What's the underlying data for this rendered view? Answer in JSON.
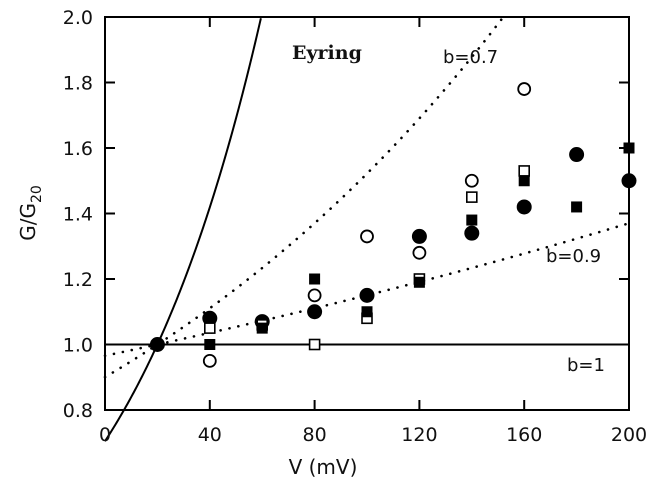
{
  "chart_data": {
    "type": "scatter",
    "title": "",
    "xlabel": "V (mV)",
    "ylabel_main": "G/G",
    "ylabel_sub": "20",
    "xlim": [
      0,
      200
    ],
    "ylim": [
      0.8,
      2.0
    ],
    "xticks": [
      0,
      40,
      80,
      120,
      160,
      200
    ],
    "yticks": [
      0.8,
      1.0,
      1.2,
      1.4,
      1.6,
      1.8,
      2.0
    ],
    "x_tick_labels": [
      "0",
      "40",
      "80",
      "120",
      "160",
      "200"
    ],
    "y_tick_labels": [
      "0.8",
      "1.0",
      "1.2",
      "1.4",
      "1.6",
      "1.8",
      "2.0"
    ],
    "grid": false,
    "curves": [
      {
        "label": "Eyring",
        "style": "solid",
        "b": 0
      },
      {
        "label": "b=0.7",
        "style": "dotted",
        "b": 0.7
      },
      {
        "label": "b=0.9",
        "style": "dotted",
        "b": 0.9
      },
      {
        "label": "b=1",
        "style": "solid",
        "b": 1
      }
    ],
    "series": [
      {
        "marker": "open-circle",
        "x": [
          40,
          80,
          100,
          120,
          140,
          160
        ],
        "y": [
          0.95,
          1.15,
          1.33,
          1.28,
          1.5,
          1.78
        ]
      },
      {
        "marker": "filled-circle",
        "x": [
          20,
          40,
          60,
          80,
          100,
          120,
          140,
          160,
          180,
          200
        ],
        "y": [
          1.0,
          1.08,
          1.07,
          1.1,
          1.15,
          1.33,
          1.34,
          1.42,
          1.58,
          1.5
        ]
      },
      {
        "marker": "open-square",
        "x": [
          40,
          60,
          80,
          100,
          120,
          140,
          160
        ],
        "y": [
          1.05,
          1.06,
          1.0,
          1.08,
          1.2,
          1.45,
          1.53
        ]
      },
      {
        "marker": "filled-square",
        "x": [
          40,
          60,
          80,
          100,
          120,
          140,
          160,
          180,
          200
        ],
        "y": [
          1.0,
          1.05,
          1.2,
          1.1,
          1.19,
          1.38,
          1.5,
          1.42,
          1.6
        ]
      }
    ]
  }
}
